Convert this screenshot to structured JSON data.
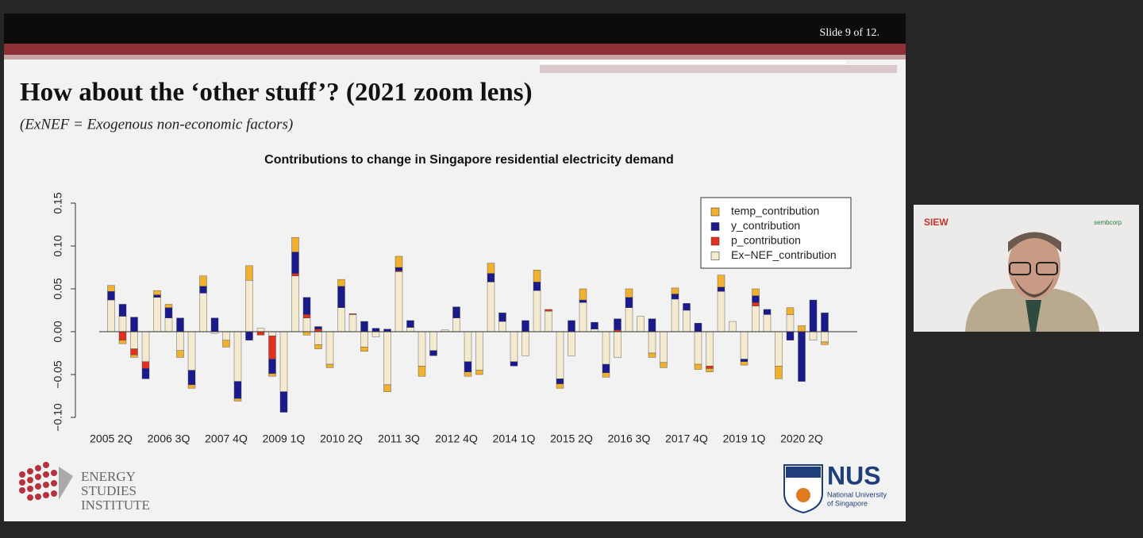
{
  "slide": {
    "counter": "Slide 9 of 12.",
    "title": "How about the ‘other stuff’? (2021 zoom lens)",
    "subtitle": "(ExNEF = Exogenous non-economic factors)",
    "logo_left": [
      "ENERGY",
      "STUDIES",
      "INSTITUTE"
    ],
    "logo_right": {
      "name": "NUS",
      "line1": "National University",
      "line2": "of Singapore"
    }
  },
  "video": {
    "logo1": "SIEW",
    "logo2": "sembcorp"
  },
  "chart_data": {
    "type": "stacked_bar",
    "title": "Contributions to change in Singapore residential electricity demand",
    "categories": [
      "2005 2Q",
      null,
      null,
      null,
      null,
      "2006 3Q",
      null,
      null,
      null,
      null,
      "2007 4Q",
      null,
      null,
      null,
      null,
      "2009 1Q",
      null,
      null,
      null,
      null,
      "2010 2Q",
      null,
      null,
      null,
      null,
      "2011 3Q",
      null,
      null,
      null,
      null,
      "2012 4Q",
      null,
      null,
      null,
      null,
      "2014 1Q",
      null,
      null,
      null,
      null,
      "2015 2Q",
      null,
      null,
      null,
      null,
      "2016 3Q",
      null,
      null,
      null,
      null,
      "2017 4Q",
      null,
      null,
      null,
      null,
      "2019 1Q",
      null,
      null,
      null,
      null,
      "2020 2Q",
      null,
      null
    ],
    "series": [
      {
        "name": "Ex−NEF_contribution",
        "color": "#f3ead0",
        "values": [
          0.037,
          0.018,
          -0.02,
          -0.035,
          0.04,
          0.016,
          -0.022,
          -0.045,
          0.045,
          -0.002,
          -0.01,
          -0.058,
          0.06,
          0.004,
          -0.005,
          -0.07,
          0.065,
          0.016,
          -0.015,
          -0.038,
          0.028,
          0.02,
          -0.018,
          -0.006,
          -0.062,
          0.07,
          0.005,
          -0.04,
          -0.022,
          0.002,
          0.016,
          -0.035,
          -0.045,
          0.058,
          0.012,
          -0.035,
          -0.028,
          0.048,
          0.024,
          -0.055,
          -0.028,
          0.034,
          0.003,
          -0.038,
          -0.03,
          0.028,
          0.018,
          -0.025,
          -0.036,
          0.038,
          0.025,
          -0.038,
          -0.04,
          0.047,
          0.012,
          -0.032,
          0.03,
          0.02,
          -0.04,
          0.02,
          0,
          -0.01,
          -0.012
        ]
      },
      {
        "name": "p_contribution",
        "color": "#e0301e",
        "values": [
          0,
          -0.01,
          -0.007,
          -0.008,
          0,
          0,
          0,
          0,
          0,
          0,
          0,
          0,
          0,
          -0.004,
          -0.027,
          0,
          0.003,
          0.004,
          0.003,
          0,
          0,
          0.001,
          0,
          0,
          0,
          0.001,
          0,
          0,
          0,
          0,
          0,
          0,
          0,
          0,
          0,
          0,
          0,
          0,
          0.002,
          0,
          0,
          0,
          0,
          0,
          0.002,
          0,
          0,
          0,
          0,
          0,
          0,
          0,
          -0.003,
          0,
          0,
          0,
          0.004,
          0,
          0,
          0,
          0,
          0,
          0
        ]
      },
      {
        "name": "y_contribution",
        "color": "#1a1a8c",
        "values": [
          0.01,
          0.014,
          0.017,
          -0.012,
          0.003,
          0.012,
          0.016,
          -0.017,
          0.008,
          0.016,
          0,
          -0.02,
          -0.01,
          0,
          -0.017,
          -0.024,
          0.025,
          0.02,
          0.003,
          0,
          0.025,
          0,
          0.012,
          0.004,
          0.003,
          0.004,
          0.008,
          0,
          -0.006,
          0,
          0.013,
          -0.012,
          0,
          0.01,
          0.01,
          -0.005,
          0.013,
          0.01,
          0,
          -0.006,
          0.013,
          0.003,
          0.008,
          -0.01,
          0.013,
          0.012,
          0,
          0.015,
          0,
          0.006,
          0.008,
          0.01,
          0,
          0.005,
          0,
          -0.003,
          0.008,
          0.006,
          0,
          -0.01,
          -0.058,
          0.037,
          0.022
        ]
      },
      {
        "name": "temp_contribution",
        "color": "#f0b030",
        "values": [
          0.007,
          -0.004,
          -0.003,
          0,
          0.005,
          0.004,
          -0.008,
          -0.004,
          0.012,
          0,
          -0.008,
          -0.003,
          0.017,
          0,
          -0.003,
          0,
          0.017,
          -0.004,
          -0.005,
          -0.004,
          0.008,
          0,
          -0.005,
          0,
          -0.008,
          0.013,
          0,
          -0.012,
          0,
          0,
          0,
          -0.005,
          -0.005,
          0.012,
          0,
          0,
          0,
          0.014,
          0,
          -0.005,
          0,
          0.013,
          0,
          -0.005,
          0,
          0.01,
          0,
          -0.005,
          -0.006,
          0.007,
          0,
          -0.006,
          -0.004,
          0.014,
          0,
          -0.004,
          0.008,
          0,
          -0.015,
          0.008,
          0.007,
          0,
          -0.003
        ]
      }
    ],
    "legend_order": [
      3,
      2,
      1,
      0
    ],
    "ylim": [
      -0.1,
      0.15
    ],
    "yticks": [
      {
        "value": -0.1,
        "label": "−0.10"
      },
      {
        "value": -0.05,
        "label": "−0.05"
      },
      {
        "value": 0,
        "label": "0.00"
      },
      {
        "value": 0.05,
        "label": "0.05"
      },
      {
        "value": 0.1,
        "label": "0.10"
      },
      0.15
    ],
    "legend": "upper right"
  }
}
